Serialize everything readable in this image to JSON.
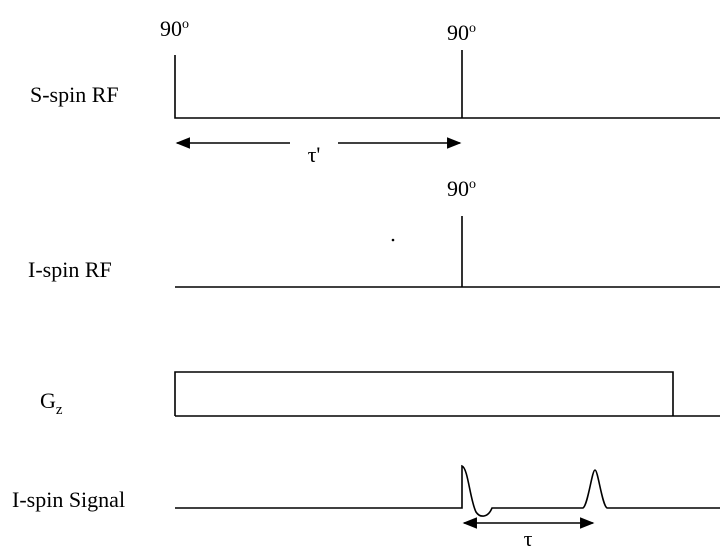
{
  "rows": [
    {
      "label": "S-spin RF",
      "pulses": [
        {
          "base": "90",
          "sup": "o"
        },
        {
          "base": "90",
          "sup": "o"
        }
      ],
      "delay": "τ'"
    },
    {
      "label": "I-spin RF",
      "pulses": [
        {
          "base": "90",
          "sup": "o"
        }
      ]
    },
    {
      "label": {
        "base": "G",
        "sub": "z"
      }
    },
    {
      "label": "I-spin Signal",
      "delay": "τ"
    }
  ]
}
